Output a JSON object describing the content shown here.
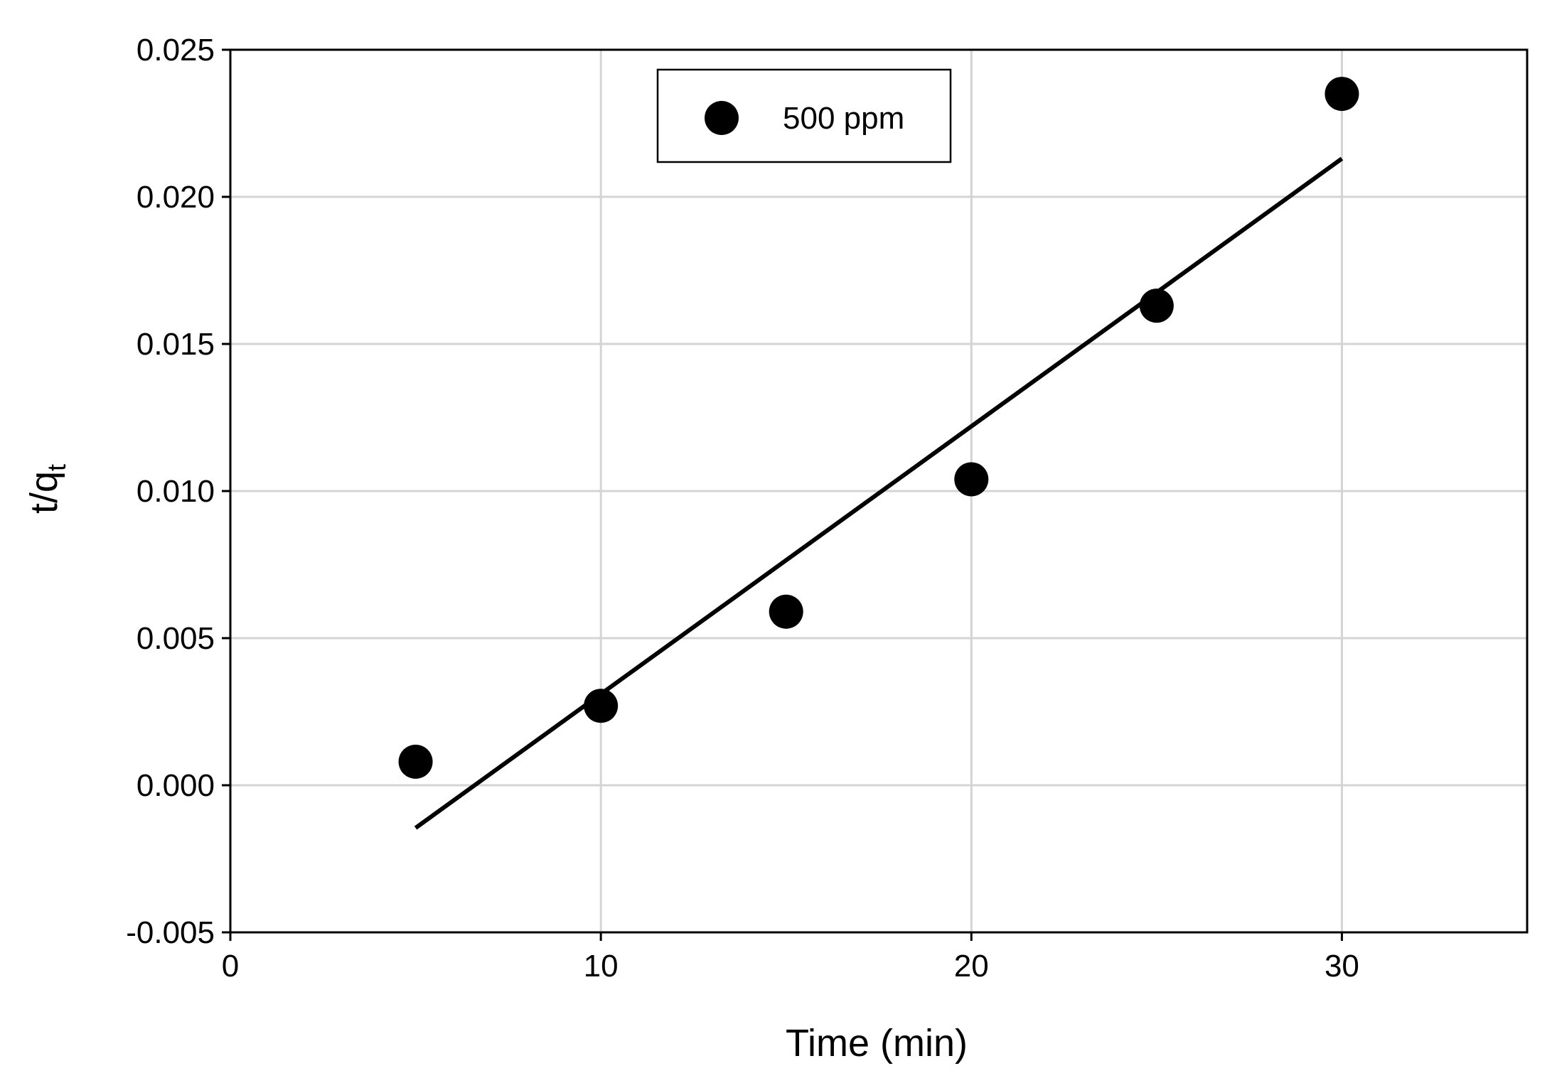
{
  "chart_data": {
    "type": "scatter",
    "title": "",
    "xlabel": "Time (min)",
    "ylabel": {
      "main": "t/q",
      "subscript": "t"
    },
    "xlim": [
      0,
      35
    ],
    "ylim": [
      -0.005,
      0.025
    ],
    "x_ticks": [
      0,
      10,
      20,
      30
    ],
    "y_ticks": [
      -0.005,
      0.0,
      0.005,
      0.01,
      0.015,
      0.02,
      0.025
    ],
    "x_tick_labels": [
      "0",
      "10",
      "20",
      "30"
    ],
    "y_tick_labels": [
      "-0.005",
      "0.000",
      "0.005",
      "0.010",
      "0.015",
      "0.020",
      "0.025"
    ],
    "grid": true,
    "legend_position": "top-center",
    "series": [
      {
        "name": "500 ppm",
        "marker": "circle",
        "color": "#000000",
        "x": [
          5,
          10,
          15,
          20,
          25,
          30
        ],
        "y": [
          0.0008,
          0.0027,
          0.0059,
          0.0104,
          0.0163,
          0.0235
        ]
      }
    ],
    "fit_line": {
      "x": [
        5,
        30
      ],
      "y": [
        -0.00145,
        0.0213
      ],
      "color": "#000000"
    }
  }
}
